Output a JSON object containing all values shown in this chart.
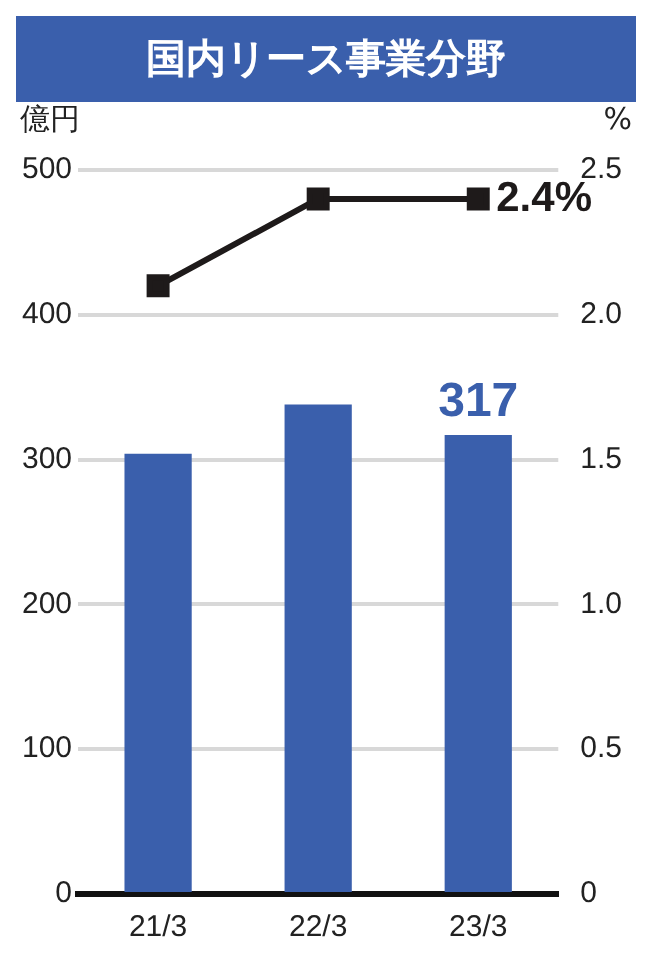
{
  "chart_data": {
    "type": "bar",
    "title": "国内リース事業分野",
    "ylabel": "億円",
    "y2label": "%",
    "categories": [
      "21/3",
      "22/3",
      "23/3"
    ],
    "series": [
      {
        "color": "#3a5fac",
        "values": [
          304,
          338,
          317
        ],
        "value_labels": [
          null,
          null,
          "317"
        ]
      },
      {
        "type": "line",
        "axis": "y2",
        "color": "#1e1a1a",
        "values": [
          2.1,
          2.4,
          2.4
        ],
        "value_labels": [
          null,
          null,
          "2.4%"
        ],
        "marker": "square"
      }
    ],
    "ylim": [
      0,
      500
    ],
    "yticks": [
      0,
      100,
      200,
      300,
      400,
      500
    ],
    "y2lim": [
      0,
      2.5
    ],
    "y2ticks": [
      {
        "value": 0,
        "label": "0"
      },
      {
        "value": 0.5,
        "label": "0.5"
      },
      {
        "value": 1,
        "label": "1.0"
      },
      {
        "value": 1.5,
        "label": "1.5"
      },
      {
        "value": 2,
        "label": "2.0"
      },
      {
        "value": 2.5,
        "label": "2.5"
      }
    ],
    "grid": "y",
    "legend": false
  }
}
